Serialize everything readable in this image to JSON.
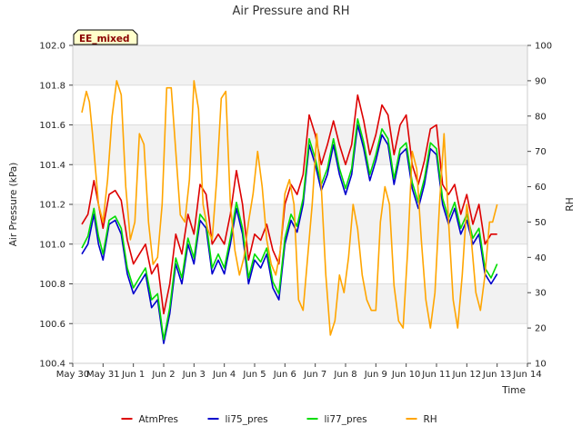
{
  "chart_data": {
    "type": "line",
    "title": "Air Pressure and RH",
    "xlabel": "Time",
    "ylabel": "Air Pressure (kPa)",
    "y2label": "RH",
    "badge": "EE_mixed",
    "xlim": [
      0,
      15
    ],
    "ylim": [
      100.4,
      102.0
    ],
    "y2lim": [
      10,
      100
    ],
    "x_ticks": [
      {
        "x": 0,
        "label": "May 30"
      },
      {
        "x": 1,
        "label": "May 31"
      },
      {
        "x": 2,
        "label": "Jun 1"
      },
      {
        "x": 3,
        "label": "Jun 2"
      },
      {
        "x": 4,
        "label": "Jun 3"
      },
      {
        "x": 5,
        "label": "Jun 4"
      },
      {
        "x": 6,
        "label": "Jun 5"
      },
      {
        "x": 7,
        "label": "Jun 6"
      },
      {
        "x": 8,
        "label": "Jun 7"
      },
      {
        "x": 9,
        "label": "Jun 8"
      },
      {
        "x": 10,
        "label": "Jun 9"
      },
      {
        "x": 11,
        "label": "Jun 10"
      },
      {
        "x": 12,
        "label": "Jun 11"
      },
      {
        "x": 13,
        "label": "Jun 12"
      },
      {
        "x": 14,
        "label": "Jun 13"
      },
      {
        "x": 15,
        "label": "Jun 14"
      }
    ],
    "y_ticks": [
      "100.4",
      "100.6",
      "100.8",
      "101.0",
      "101.2",
      "101.4",
      "101.6",
      "101.8",
      "102.0"
    ],
    "y2_ticks": [
      "10",
      "20",
      "30",
      "40",
      "50",
      "60",
      "70",
      "80",
      "90",
      "100"
    ],
    "grid": true,
    "legend_position": "bottom",
    "series": [
      {
        "name": "AtmPres",
        "axis": "left",
        "color": "#dd0000",
        "x": [
          0.3,
          0.5,
          0.7,
          0.85,
          1.0,
          1.2,
          1.4,
          1.6,
          1.8,
          2.0,
          2.2,
          2.4,
          2.6,
          2.8,
          3.0,
          3.2,
          3.4,
          3.6,
          3.8,
          4.0,
          4.2,
          4.4,
          4.6,
          4.8,
          5.0,
          5.2,
          5.4,
          5.6,
          5.8,
          6.0,
          6.2,
          6.4,
          6.6,
          6.8,
          7.0,
          7.2,
          7.4,
          7.6,
          7.8,
          8.0,
          8.2,
          8.4,
          8.6,
          8.8,
          9.0,
          9.2,
          9.4,
          9.6,
          9.8,
          10.0,
          10.2,
          10.4,
          10.6,
          10.8,
          11.0,
          11.2,
          11.4,
          11.6,
          11.8,
          12.0,
          12.2,
          12.4,
          12.6,
          12.8,
          13.0,
          13.2,
          13.4,
          13.6,
          13.8,
          14.0
        ],
        "y": [
          101.1,
          101.15,
          101.32,
          101.2,
          101.08,
          101.25,
          101.27,
          101.22,
          101.02,
          100.9,
          100.95,
          101.0,
          100.85,
          100.9,
          100.65,
          100.8,
          101.05,
          100.95,
          101.15,
          101.05,
          101.3,
          101.25,
          101.0,
          101.05,
          101.0,
          101.15,
          101.37,
          101.2,
          100.92,
          101.05,
          101.02,
          101.1,
          100.97,
          100.9,
          101.2,
          101.3,
          101.25,
          101.35,
          101.65,
          101.55,
          101.4,
          101.5,
          101.62,
          101.5,
          101.4,
          101.5,
          101.75,
          101.62,
          101.45,
          101.55,
          101.7,
          101.65,
          101.45,
          101.6,
          101.65,
          101.4,
          101.3,
          101.42,
          101.58,
          101.6,
          101.3,
          101.25,
          101.3,
          101.15,
          101.25,
          101.1,
          101.2,
          101.0,
          101.05,
          101.05
        ]
      },
      {
        "name": "li75_pres",
        "axis": "left",
        "color": "#0000cc",
        "x": [
          0.3,
          0.5,
          0.7,
          0.85,
          1.0,
          1.2,
          1.4,
          1.6,
          1.8,
          2.0,
          2.2,
          2.4,
          2.6,
          2.8,
          3.0,
          3.2,
          3.4,
          3.6,
          3.8,
          4.0,
          4.2,
          4.4,
          4.6,
          4.8,
          5.0,
          5.2,
          5.4,
          5.6,
          5.8,
          6.0,
          6.2,
          6.4,
          6.6,
          6.8,
          7.0,
          7.2,
          7.4,
          7.6,
          7.8,
          8.0,
          8.2,
          8.4,
          8.6,
          8.8,
          9.0,
          9.2,
          9.4,
          9.6,
          9.8,
          10.0,
          10.2,
          10.4,
          10.6,
          10.8,
          11.0,
          11.2,
          11.4,
          11.6,
          11.8,
          12.0,
          12.2,
          12.4,
          12.6,
          12.8,
          13.0,
          13.2,
          13.4,
          13.6,
          13.8,
          14.0
        ],
        "y": [
          100.95,
          101.0,
          101.15,
          101.0,
          100.92,
          101.1,
          101.12,
          101.05,
          100.85,
          100.75,
          100.8,
          100.85,
          100.68,
          100.72,
          100.5,
          100.65,
          100.9,
          100.8,
          101.0,
          100.9,
          101.12,
          101.08,
          100.85,
          100.92,
          100.85,
          101.0,
          101.18,
          101.05,
          100.8,
          100.92,
          100.88,
          100.95,
          100.78,
          100.72,
          101.0,
          101.12,
          101.06,
          101.2,
          101.5,
          101.4,
          101.27,
          101.35,
          101.5,
          101.35,
          101.25,
          101.35,
          101.6,
          101.48,
          101.32,
          101.42,
          101.55,
          101.5,
          101.3,
          101.45,
          101.48,
          101.28,
          101.18,
          101.3,
          101.48,
          101.45,
          101.2,
          101.1,
          101.18,
          101.05,
          101.12,
          101.0,
          101.05,
          100.85,
          100.8,
          100.85
        ]
      },
      {
        "name": "li77_pres",
        "axis": "left",
        "color": "#00dd00",
        "x": [
          0.3,
          0.5,
          0.7,
          0.85,
          1.0,
          1.2,
          1.4,
          1.6,
          1.8,
          2.0,
          2.2,
          2.4,
          2.6,
          2.8,
          3.0,
          3.2,
          3.4,
          3.6,
          3.8,
          4.0,
          4.2,
          4.4,
          4.6,
          4.8,
          5.0,
          5.2,
          5.4,
          5.6,
          5.8,
          6.0,
          6.2,
          6.4,
          6.6,
          6.8,
          7.0,
          7.2,
          7.4,
          7.6,
          7.8,
          8.0,
          8.2,
          8.4,
          8.6,
          8.8,
          9.0,
          9.2,
          9.4,
          9.6,
          9.8,
          10.0,
          10.2,
          10.4,
          10.6,
          10.8,
          11.0,
          11.2,
          11.4,
          11.6,
          11.8,
          12.0,
          12.2,
          12.4,
          12.6,
          12.8,
          13.0,
          13.2,
          13.4,
          13.6,
          13.8,
          14.0
        ],
        "y": [
          100.98,
          101.04,
          101.18,
          101.04,
          100.95,
          101.12,
          101.14,
          101.08,
          100.88,
          100.78,
          100.83,
          100.88,
          100.72,
          100.75,
          100.52,
          100.68,
          100.93,
          100.83,
          101.03,
          100.93,
          101.15,
          101.11,
          100.88,
          100.95,
          100.88,
          101.03,
          101.21,
          101.08,
          100.83,
          100.95,
          100.91,
          100.98,
          100.81,
          100.75,
          101.03,
          101.15,
          101.09,
          101.23,
          101.53,
          101.43,
          101.3,
          101.38,
          101.53,
          101.38,
          101.28,
          101.38,
          101.63,
          101.51,
          101.35,
          101.45,
          101.58,
          101.53,
          101.33,
          101.48,
          101.51,
          101.31,
          101.21,
          101.33,
          101.51,
          101.48,
          101.23,
          101.13,
          101.21,
          101.08,
          101.15,
          101.03,
          101.08,
          100.88,
          100.83,
          100.9
        ]
      },
      {
        "name": "RH",
        "axis": "right",
        "color": "#ffa500",
        "x": [
          0.3,
          0.45,
          0.55,
          0.65,
          0.75,
          0.85,
          1.0,
          1.15,
          1.3,
          1.45,
          1.6,
          1.75,
          1.9,
          2.05,
          2.2,
          2.35,
          2.5,
          2.65,
          2.8,
          2.95,
          3.1,
          3.25,
          3.4,
          3.55,
          3.7,
          3.85,
          4.0,
          4.15,
          4.3,
          4.45,
          4.6,
          4.75,
          4.9,
          5.05,
          5.2,
          5.35,
          5.5,
          5.65,
          5.8,
          5.95,
          6.1,
          6.25,
          6.4,
          6.55,
          6.7,
          6.85,
          7.0,
          7.15,
          7.3,
          7.45,
          7.6,
          7.75,
          7.9,
          8.05,
          8.2,
          8.35,
          8.5,
          8.65,
          8.8,
          8.95,
          9.1,
          9.25,
          9.4,
          9.55,
          9.7,
          9.85,
          10.0,
          10.15,
          10.3,
          10.45,
          10.6,
          10.75,
          10.9,
          11.05,
          11.2,
          11.35,
          11.5,
          11.65,
          11.8,
          11.95,
          12.1,
          12.25,
          12.4,
          12.55,
          12.7,
          12.85,
          13.0,
          13.15,
          13.3,
          13.45,
          13.6,
          13.75,
          13.85,
          14.0
        ],
        "y": [
          81,
          87,
          84,
          75,
          65,
          55,
          50,
          62,
          80,
          90,
          86,
          60,
          45,
          50,
          75,
          72,
          50,
          38,
          40,
          55,
          88,
          88,
          70,
          52,
          50,
          62,
          90,
          82,
          55,
          48,
          45,
          62,
          85,
          87,
          55,
          42,
          35,
          40,
          50,
          58,
          70,
          60,
          45,
          38,
          35,
          42,
          58,
          62,
          55,
          28,
          25,
          40,
          55,
          75,
          60,
          35,
          18,
          22,
          35,
          30,
          40,
          55,
          48,
          35,
          28,
          25,
          25,
          50,
          60,
          55,
          32,
          22,
          20,
          42,
          70,
          65,
          45,
          28,
          20,
          30,
          55,
          75,
          50,
          28,
          20,
          35,
          55,
          45,
          30,
          25,
          35,
          50,
          50,
          55
        ]
      }
    ]
  }
}
